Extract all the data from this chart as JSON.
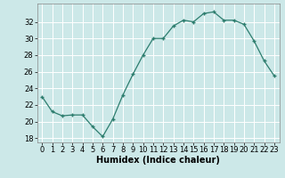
{
  "x": [
    0,
    1,
    2,
    3,
    4,
    5,
    6,
    7,
    8,
    9,
    10,
    11,
    12,
    13,
    14,
    15,
    16,
    17,
    18,
    19,
    20,
    21,
    22,
    23
  ],
  "y": [
    23.0,
    21.2,
    20.7,
    20.8,
    20.8,
    19.4,
    18.2,
    20.3,
    23.2,
    25.7,
    28.0,
    30.0,
    30.0,
    31.5,
    32.2,
    32.0,
    33.0,
    33.2,
    32.2,
    32.2,
    31.7,
    29.7,
    27.3,
    25.5
  ],
  "title": "",
  "xlabel": "Humidex (Indice chaleur)",
  "ylabel": "",
  "xlim": [
    -0.5,
    23.5
  ],
  "ylim": [
    17.5,
    34.2
  ],
  "yticks": [
    18,
    20,
    22,
    24,
    26,
    28,
    30,
    32
  ],
  "xticks": [
    0,
    1,
    2,
    3,
    4,
    5,
    6,
    7,
    8,
    9,
    10,
    11,
    12,
    13,
    14,
    15,
    16,
    17,
    18,
    19,
    20,
    21,
    22,
    23
  ],
  "line_color": "#2d7d6e",
  "marker": "+",
  "bg_color": "#cce8e8",
  "grid_color": "#ffffff",
  "label_fontsize": 7,
  "tick_fontsize": 6
}
